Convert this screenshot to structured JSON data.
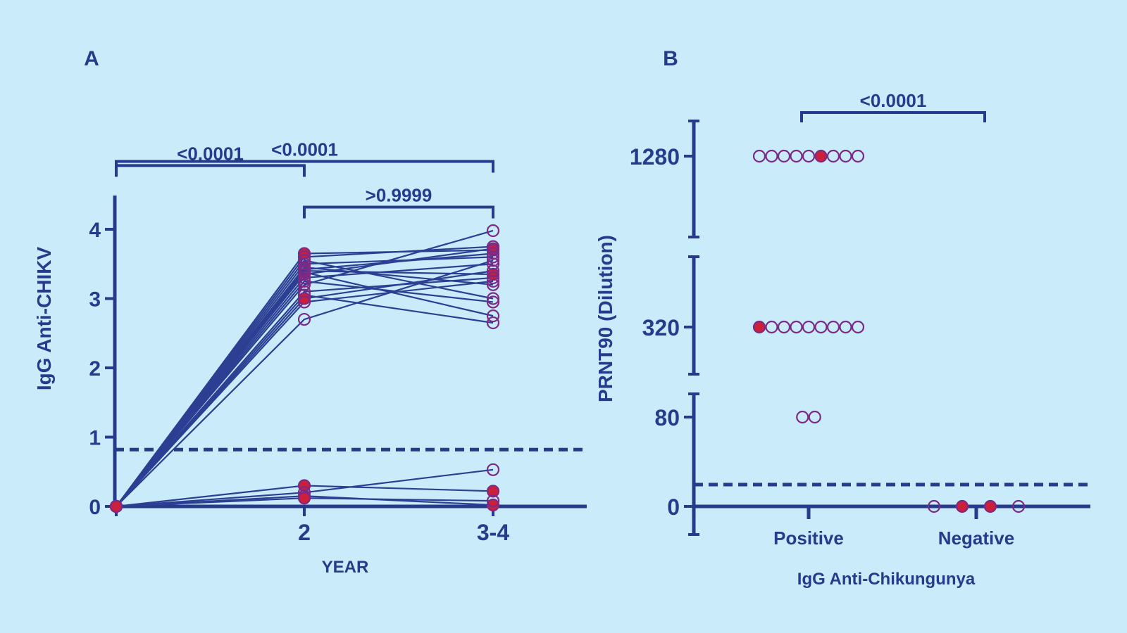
{
  "colors": {
    "background": "#c9ebfa",
    "axis": "#283a8c",
    "line": "#2c3f93",
    "open_marker": "#7b2a86",
    "filled_marker": "#cc1f3c"
  },
  "chart_data": [
    {
      "type": "line",
      "panel_label": "A",
      "xlabel": "YEAR",
      "ylabel": "IgG Anti-CHIKV",
      "categories": [
        "0",
        "2",
        "3-4"
      ],
      "x_tick_labels": [
        "",
        "2",
        "3-4"
      ],
      "y_ticks": [
        "0",
        "1",
        "2",
        "3",
        "4"
      ],
      "ylim": [
        0,
        4.5
      ],
      "cutoff": 0.82,
      "comparisons": [
        {
          "from": 0,
          "to": 2,
          "label": "<0.0001",
          "level": 4.98
        },
        {
          "from": 0,
          "to": 1,
          "label": "<0.0001",
          "level": 4.92
        },
        {
          "from": 1,
          "to": 2,
          "label": ">0.9999",
          "level": 4.32
        }
      ],
      "series": [
        {
          "values": [
            0,
            3.65,
            3.7
          ],
          "filled": [
            true,
            true,
            true
          ]
        },
        {
          "values": [
            0,
            3.6,
            3.75
          ],
          "filled": [
            true,
            false,
            false
          ]
        },
        {
          "values": [
            0,
            3.55,
            3.0
          ],
          "filled": [
            true,
            false,
            false
          ]
        },
        {
          "values": [
            0,
            3.5,
            3.6
          ],
          "filled": [
            true,
            false,
            false
          ]
        },
        {
          "values": [
            0,
            3.45,
            3.2
          ],
          "filled": [
            true,
            false,
            false
          ]
        },
        {
          "values": [
            0,
            3.42,
            3.65
          ],
          "filled": [
            true,
            false,
            false
          ]
        },
        {
          "values": [
            0,
            3.4,
            3.35
          ],
          "filled": [
            true,
            false,
            true
          ]
        },
        {
          "values": [
            0,
            3.38,
            2.75
          ],
          "filled": [
            true,
            false,
            false
          ]
        },
        {
          "values": [
            0,
            3.35,
            3.72
          ],
          "filled": [
            true,
            false,
            false
          ]
        },
        {
          "values": [
            0,
            3.3,
            3.5
          ],
          "filled": [
            true,
            false,
            false
          ]
        },
        {
          "values": [
            0,
            3.25,
            2.95
          ],
          "filled": [
            true,
            false,
            false
          ]
        },
        {
          "values": [
            0,
            3.2,
            3.98
          ],
          "filled": [
            true,
            false,
            false
          ]
        },
        {
          "values": [
            0,
            3.1,
            3.3
          ],
          "filled": [
            true,
            false,
            false
          ]
        },
        {
          "values": [
            0,
            3.05,
            2.65
          ],
          "filled": [
            true,
            false,
            false
          ]
        },
        {
          "values": [
            0,
            3.0,
            3.4
          ],
          "filled": [
            true,
            true,
            false
          ]
        },
        {
          "values": [
            0,
            2.95,
            3.25
          ],
          "filled": [
            true,
            false,
            false
          ]
        },
        {
          "values": [
            0,
            2.7,
            3.55
          ],
          "filled": [
            true,
            false,
            false
          ]
        },
        {
          "values": [
            0,
            0.3,
            0.22
          ],
          "filled": [
            true,
            true,
            true
          ]
        },
        {
          "values": [
            0,
            0.2,
            0.53
          ],
          "filled": [
            true,
            false,
            false
          ]
        },
        {
          "values": [
            0,
            0.15,
            0.02
          ],
          "filled": [
            true,
            false,
            true
          ]
        },
        {
          "values": [
            0,
            0.12,
            0.08
          ],
          "filled": [
            true,
            true,
            false
          ]
        }
      ]
    },
    {
      "type": "scatter",
      "panel_label": "B",
      "xlabel": "IgG Anti-Chikungunya",
      "ylabel": "PRNT90 (Dilution)",
      "categories": [
        "Positive",
        "Negative"
      ],
      "y_ticks": [
        "0",
        "80",
        "320",
        "1280"
      ],
      "y_tick_values": [
        0,
        80,
        320,
        1280
      ],
      "comparison": {
        "from": 0,
        "to": 1,
        "label": "<0.0001"
      },
      "groups": [
        {
          "category": "Positive",
          "value": 1280,
          "markers": [
            "open",
            "open",
            "open",
            "open",
            "open",
            "filled",
            "open",
            "open",
            "open"
          ]
        },
        {
          "category": "Positive",
          "value": 320,
          "markers": [
            "filled",
            "open",
            "open",
            "open",
            "open",
            "open",
            "open",
            "open",
            "open"
          ]
        },
        {
          "category": "Positive",
          "value": 80,
          "markers": [
            "open",
            "open"
          ]
        },
        {
          "category": "Negative",
          "value": 0,
          "markers": [
            "open",
            "filled",
            "filled",
            "open"
          ]
        }
      ]
    }
  ]
}
